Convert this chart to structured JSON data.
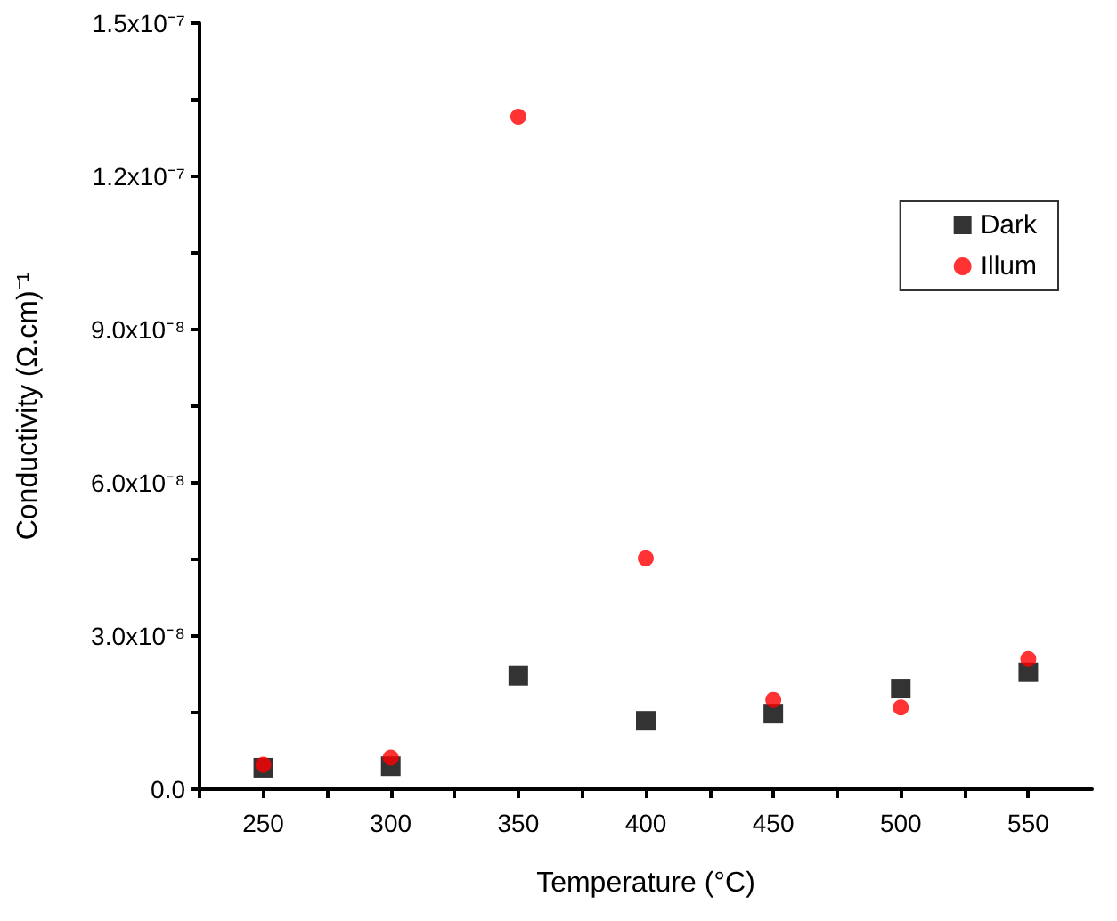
{
  "chart_data": {
    "type": "scatter",
    "xlabel": "Temperature (°C)",
    "ylabel": "Conductivity (Ω.cm)⁻¹",
    "x": [
      250,
      300,
      350,
      400,
      450,
      500,
      550
    ],
    "series": [
      {
        "name": "Dark",
        "color": "#000000",
        "marker": "square",
        "values": [
          4.2e-09,
          4.5e-09,
          2.22e-08,
          1.34e-08,
          1.48e-08,
          1.97e-08,
          2.29e-08
        ]
      },
      {
        "name": "Illum",
        "color": "#ff0000",
        "marker": "circle",
        "values": [
          4.8e-09,
          6.2e-09,
          1.317e-07,
          4.52e-08,
          1.75e-08,
          1.6e-08,
          2.55e-08
        ]
      }
    ],
    "xlim": [
      225,
      575
    ],
    "xticks": [
      {
        "value": 225,
        "label": null
      },
      250,
      {
        "value": 275,
        "label": null
      },
      300,
      {
        "value": 325,
        "label": null
      },
      350,
      {
        "value": 375,
        "label": null
      },
      400,
      {
        "value": 425,
        "label": null
      },
      450,
      {
        "value": 475,
        "label": null
      },
      500,
      {
        "value": 525,
        "label": null
      },
      550
    ],
    "ylim": [
      0,
      1.5e-07
    ],
    "yticks": [
      {
        "value": 0,
        "label": "0.0"
      },
      {
        "value": 1.5e-08,
        "label": null
      },
      {
        "value": 3e-08,
        "label": "3.0x10⁻⁸"
      },
      {
        "value": 4.5e-08,
        "label": null
      },
      {
        "value": 6e-08,
        "label": "6.0x10⁻⁸"
      },
      {
        "value": 7.5e-08,
        "label": null
      },
      {
        "value": 9e-08,
        "label": "9.0x10⁻⁸"
      },
      {
        "value": 1.05e-07,
        "label": null
      },
      {
        "value": 1.2e-07,
        "label": "1.2x10⁻⁷"
      },
      {
        "value": 1.35e-07,
        "label": null
      },
      {
        "value": 1.5e-07,
        "label": "1.5x10⁻⁷"
      }
    ],
    "grid": false,
    "legend": "top right"
  }
}
